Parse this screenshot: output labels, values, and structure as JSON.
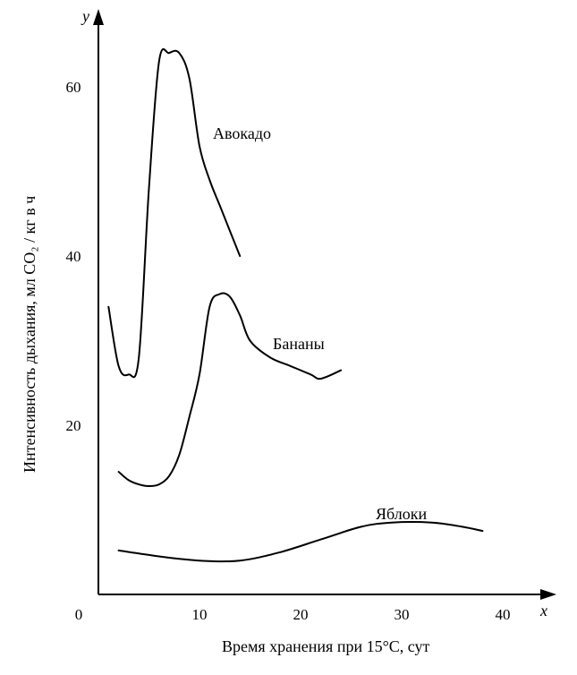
{
  "chart_data": {
    "type": "line",
    "title": "",
    "xlabel": "Время хранения при 15°С, сут",
    "ylabel": "Интенсивность дыхания, мл CO₂ / кг в ч",
    "x_axis_letter": "x",
    "y_axis_letter": "y",
    "xlim": [
      0,
      44
    ],
    "ylim": [
      0,
      70
    ],
    "x_ticks": [
      "0",
      "10",
      "20",
      "30",
      "40"
    ],
    "y_ticks": [
      "20",
      "40",
      "60"
    ],
    "grid": false,
    "series": [
      {
        "name": "Авокадо",
        "x": [
          1,
          2,
          3,
          4,
          5,
          6,
          7,
          8,
          9,
          10,
          11,
          12,
          13,
          14
        ],
        "y": [
          34,
          27,
          26,
          28,
          48,
          63,
          64,
          64,
          61,
          53,
          49,
          46,
          43,
          40
        ]
      },
      {
        "name": "Бананы",
        "x": [
          2,
          3,
          4,
          5,
          6,
          7,
          8,
          9,
          10,
          11,
          12,
          13,
          14,
          15,
          17,
          19,
          21,
          22,
          24
        ],
        "y": [
          14.5,
          13.5,
          13,
          12.8,
          13,
          14,
          16.5,
          21,
          26,
          34,
          35.5,
          35.2,
          33,
          30,
          28,
          27,
          26,
          25.5,
          26.5
        ]
      },
      {
        "name": "Яблоки",
        "x": [
          2,
          6,
          10,
          14,
          18,
          22,
          26,
          29,
          33,
          36,
          38
        ],
        "y": [
          5.2,
          4.5,
          4,
          4,
          5,
          6.5,
          8,
          8.5,
          8.5,
          8,
          7.5
        ]
      }
    ]
  }
}
